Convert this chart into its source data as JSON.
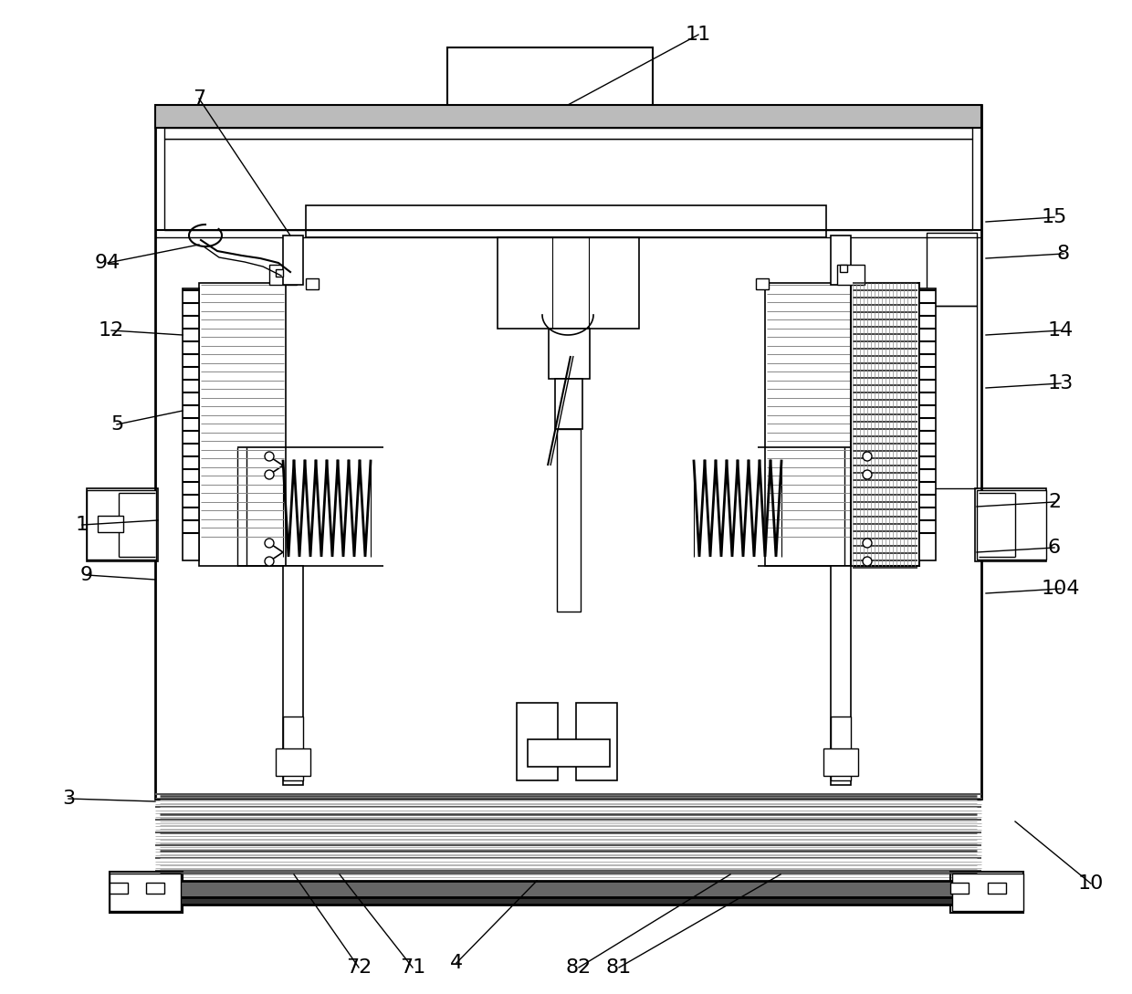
{
  "bg_color": "#ffffff",
  "line_color": "#000000",
  "gray_color": "#888888",
  "light_gray": "#cccccc",
  "dark_gray": "#333333",
  "label_fontsize": 16,
  "line_width": 1.2
}
